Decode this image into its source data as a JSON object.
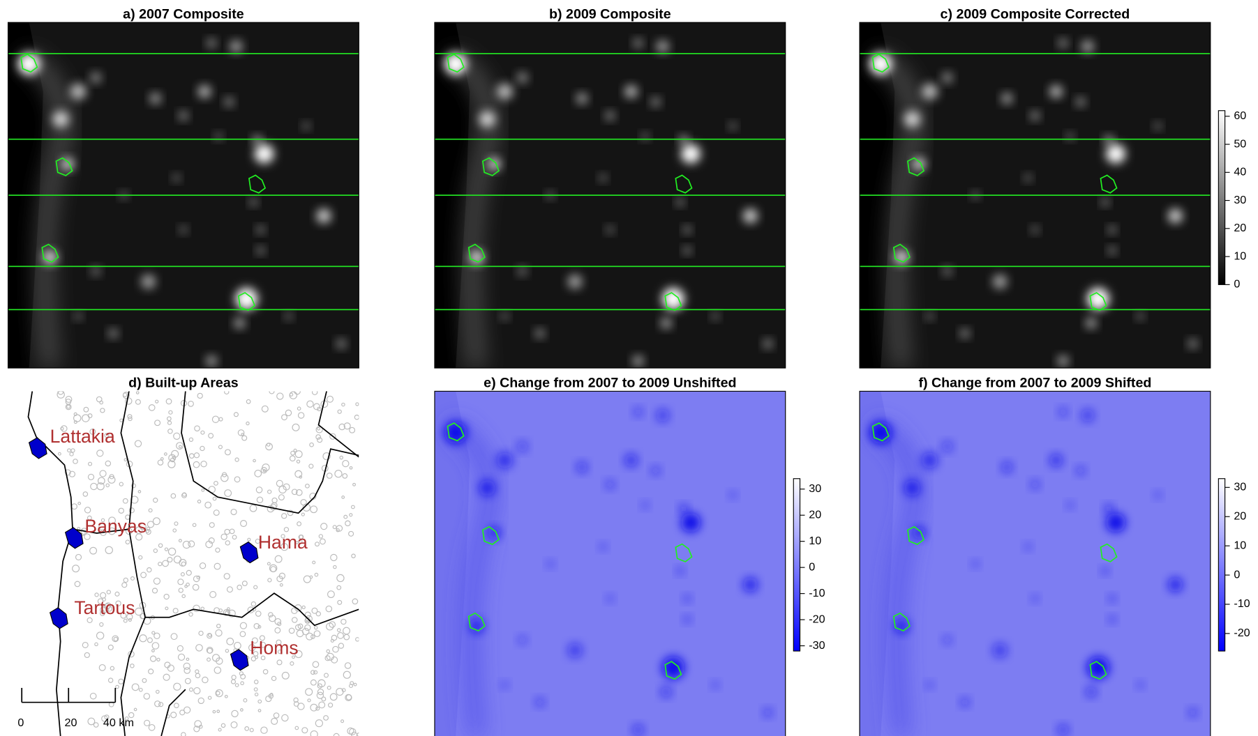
{
  "figure": {
    "panels": [
      {
        "title": "a) 2007 Composite"
      },
      {
        "title": "b) 2009 Composite"
      },
      {
        "title": "c) 2009 Composite Corrected",
        "colorbar": {
          "colors": [
            "#000000",
            "#ffffff"
          ],
          "lim": [
            0,
            62
          ],
          "ticks": [
            0,
            10,
            20,
            30,
            40,
            50,
            60
          ]
        }
      },
      {
        "title": "d) Built-up Areas",
        "cities": [
          "Lattakia",
          "Banyas",
          "Hama",
          "Tartous",
          "Homs"
        ],
        "scalebar": {
          "xlim": [
            0,
            40
          ],
          "ticks": [
            0,
            20,
            {
              "value": 40,
              "label": "40 km"
            }
          ]
        }
      },
      {
        "title": "e) Change from 2007 to 2009 Unshifted",
        "colorbar": {
          "colors": [
            "#0000ff",
            "#ffffff"
          ],
          "lim": [
            -32,
            34
          ],
          "ticks": [
            -30,
            -20,
            -10,
            0,
            10,
            20,
            30
          ]
        }
      },
      {
        "title": "f) Change from 2007 to 2009 Shifted",
        "colorbar": {
          "colors": [
            "#0000ff",
            "#ffffff"
          ],
          "lim": [
            -26,
            33
          ],
          "ticks": [
            -20,
            -10,
            0,
            10,
            20,
            30
          ]
        }
      }
    ]
  }
}
